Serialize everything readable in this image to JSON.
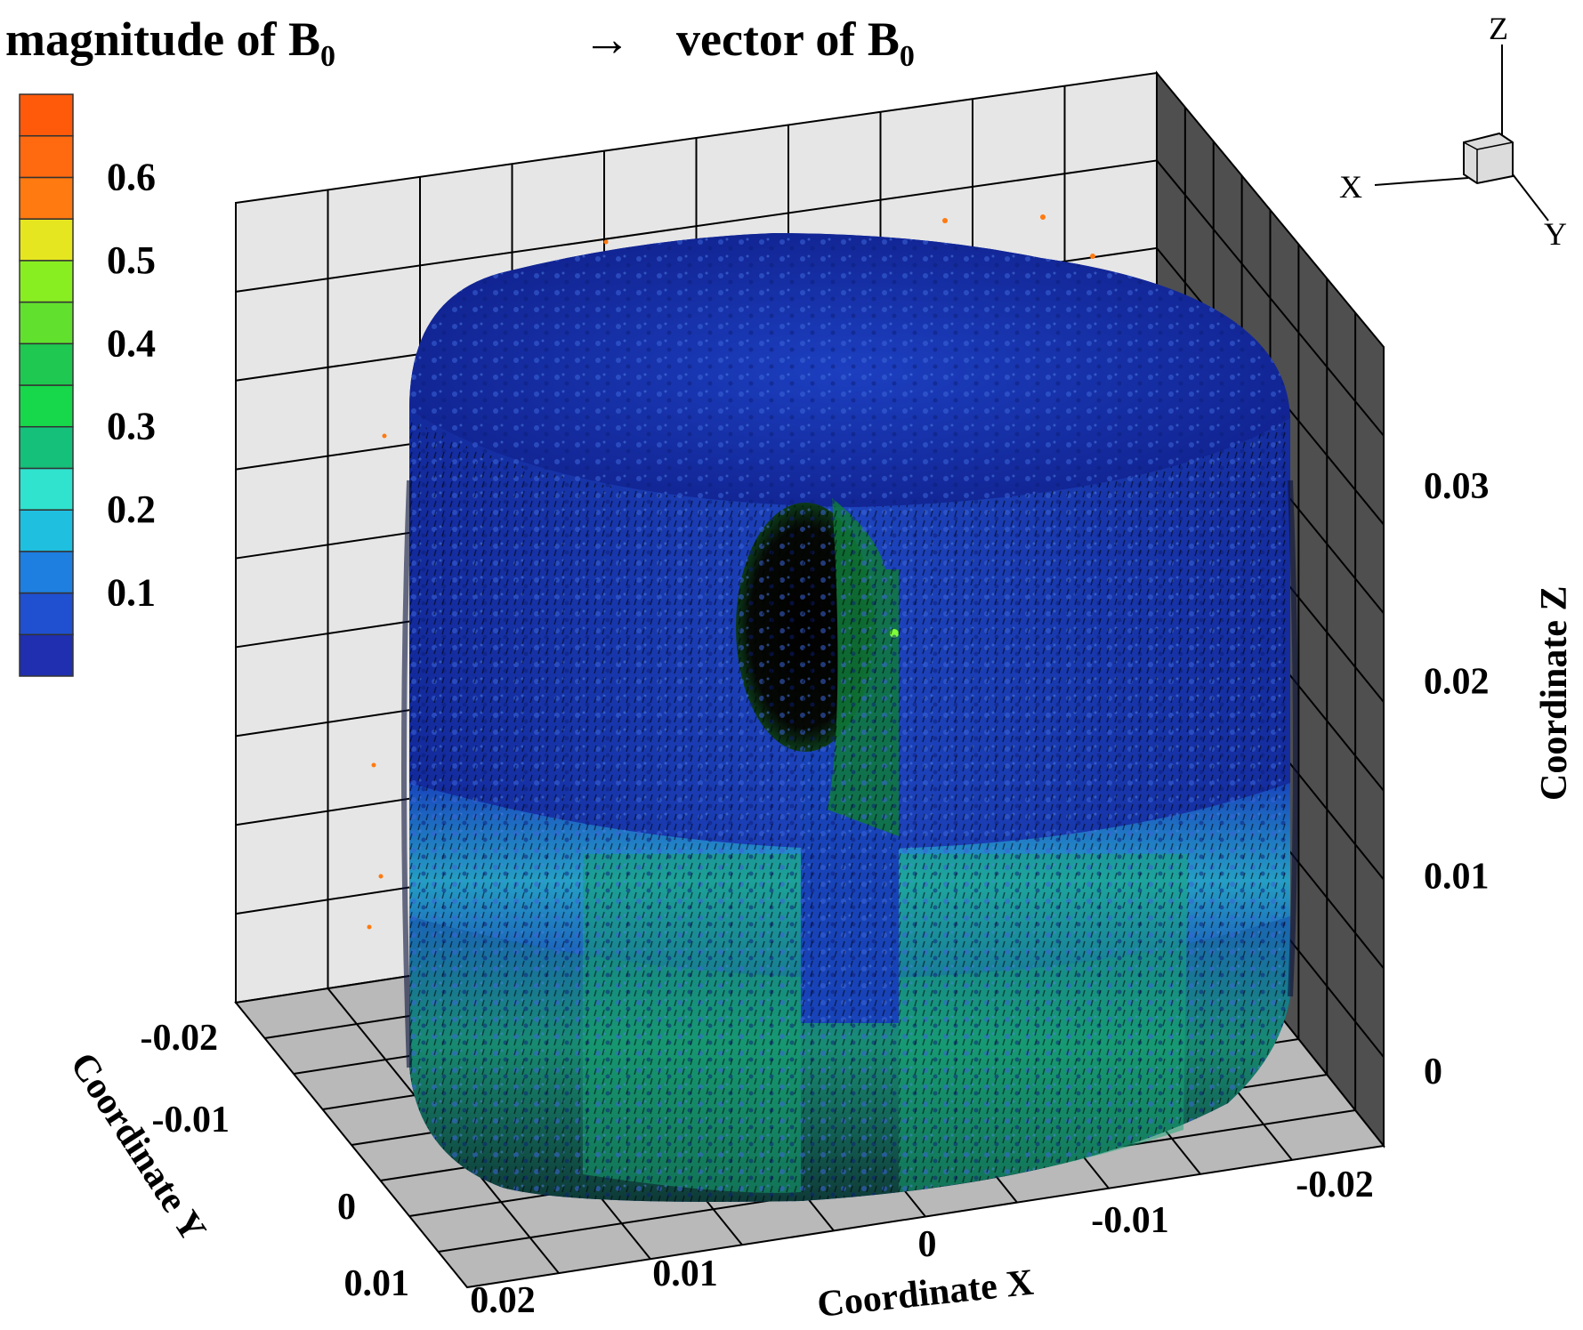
{
  "header": {
    "magnitude_label": "magnitude of B",
    "magnitude_sub": "0",
    "vector_arrow": "→",
    "vector_label": "vector of B",
    "vector_sub": "0"
  },
  "colorbar": {
    "tick_labels": [
      "0.6",
      "0.5",
      "0.4",
      "0.3",
      "0.2",
      "0.1"
    ],
    "tick_values": [
      0.6,
      0.5,
      0.4,
      0.3,
      0.2,
      0.1
    ],
    "range": [
      0.0,
      0.7
    ],
    "colors": [
      "#1f2fb0",
      "#2050d0",
      "#1e7fe0",
      "#1fbfe0",
      "#2fe3cf",
      "#15c07a",
      "#16d84a",
      "#1fc850",
      "#62e02e",
      "#88ee22",
      "#e6e620",
      "#ff7a10",
      "#ff6a10",
      "#ff5a0a"
    ]
  },
  "axis_triad": {
    "z": "Z",
    "x": "X",
    "y": "Y"
  },
  "chart_data": {
    "type": "3d-vector-surface",
    "title": "magnitude of B0 → vector of B0",
    "variable": "B0",
    "colormap_range": [
      0.0,
      0.7
    ],
    "x_axis": {
      "label": "Coordinate X",
      "tick_labels": [
        "0.02",
        "0.01",
        "0",
        "-0.01",
        "-0.02"
      ],
      "range": [
        0.025,
        -0.025
      ]
    },
    "y_axis": {
      "label": "Coordinate Y",
      "tick_labels": [
        "-0.02",
        "-0.01",
        "0",
        "0.01"
      ],
      "range": [
        -0.025,
        0.015
      ]
    },
    "z_axis": {
      "label": "Coordinate Z",
      "tick_labels": [
        "0",
        "0.01",
        "0.02",
        "0.03"
      ],
      "range": [
        0.0,
        0.035
      ]
    },
    "grid": true,
    "legend_position": "left"
  },
  "colors": {
    "wall": "#e6e6e6",
    "floor": "#b9b9b9",
    "side_wall": "#555555",
    "cylinder_dark": "#10208a",
    "cylinder_mid": "#1a3fb8",
    "field_teal": "#2bd1c8",
    "field_green": "#1fb86a"
  }
}
